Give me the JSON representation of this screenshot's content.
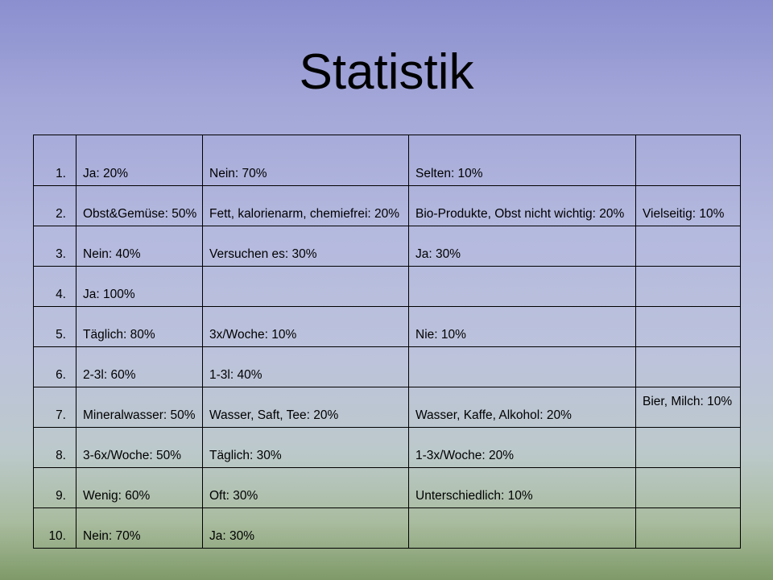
{
  "title": "Statistik",
  "rows": [
    {
      "num": "1.",
      "cells": [
        "Ja: 20%",
        "Nein: 70%",
        "Selten: 10%",
        ""
      ]
    },
    {
      "num": "2.",
      "cells": [
        "Obst&Gemüse: 50%",
        "Fett, kalorienarm, chemiefrei: 20%",
        "Bio-Produkte, Obst nicht wichtig: 20%",
        "Vielseitig: 10%"
      ]
    },
    {
      "num": "3.",
      "cells": [
        "Nein: 40%",
        "Versuchen es: 30%",
        "Ja: 30%",
        ""
      ]
    },
    {
      "num": "4.",
      "cells": [
        "Ja: 100%",
        "",
        "",
        ""
      ]
    },
    {
      "num": "5.",
      "cells": [
        "Täglich: 80%",
        "3x/Woche: 10%",
        "Nie: 10%",
        ""
      ]
    },
    {
      "num": "6.",
      "cells": [
        "2-3l: 60%",
        "1-3l: 40%",
        "",
        ""
      ]
    },
    {
      "num": "7.",
      "cells": [
        "Mineralwasser: 50%",
        "Wasser, Saft, Tee: 20%",
        "Wasser, Kaffe, Alkohol: 20%",
        "Bier, Milch: 10%"
      ]
    },
    {
      "num": "8.",
      "cells": [
        "3-6x/Woche: 50%",
        "Täglich: 30%",
        "1-3x/Woche: 20%",
        ""
      ]
    },
    {
      "num": "9.",
      "cells": [
        "Wenig: 60%",
        "Oft: 30%",
        "Unterschiedlich: 10%",
        ""
      ]
    },
    {
      "num": "10.",
      "cells": [
        "Nein: 70%",
        "Ja: 30%",
        "",
        ""
      ]
    }
  ]
}
